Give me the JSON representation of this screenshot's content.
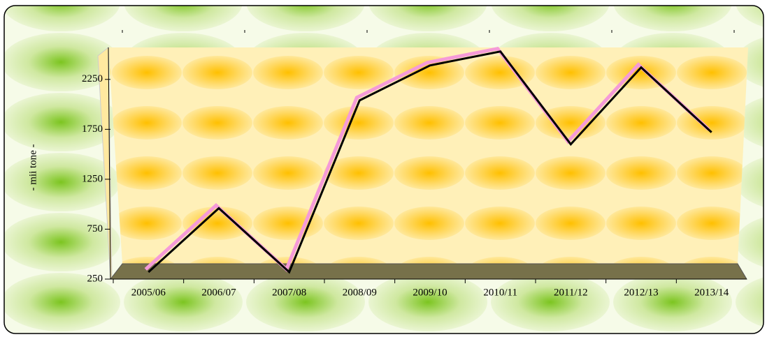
{
  "chart_data": {
    "type": "line",
    "y_label": "- mii tone -",
    "categories": [
      "2005/06",
      "2006/07",
      "2007/08",
      "2008/09",
      "2009/10",
      "2010/11",
      "2011/12",
      "2012/13",
      "2013/14"
    ],
    "series": [
      {
        "name": "mii tone",
        "color": "#000000",
        "values": [
          320,
          960,
          320,
          2040,
          2390,
          2530,
          1600,
          2370,
          1720
        ]
      }
    ],
    "ylim": [
      250,
      2570
    ],
    "yticks": [
      250,
      750,
      1250,
      1750,
      2250
    ],
    "grid": false
  }
}
